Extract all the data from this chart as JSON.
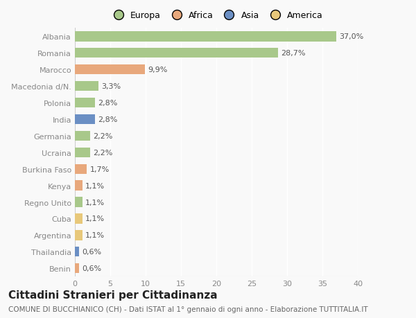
{
  "categories": [
    "Albania",
    "Romania",
    "Marocco",
    "Macedonia d/N.",
    "Polonia",
    "India",
    "Germania",
    "Ucraina",
    "Burkina Faso",
    "Kenya",
    "Regno Unito",
    "Cuba",
    "Argentina",
    "Thailandia",
    "Benin"
  ],
  "values": [
    37.0,
    28.7,
    9.9,
    3.3,
    2.8,
    2.8,
    2.2,
    2.2,
    1.7,
    1.1,
    1.1,
    1.1,
    1.1,
    0.6,
    0.6
  ],
  "labels": [
    "37,0%",
    "28,7%",
    "9,9%",
    "3,3%",
    "2,8%",
    "2,8%",
    "2,2%",
    "2,2%",
    "1,7%",
    "1,1%",
    "1,1%",
    "1,1%",
    "1,1%",
    "0,6%",
    "0,6%"
  ],
  "continents": [
    "Europa",
    "Europa",
    "Africa",
    "Europa",
    "Europa",
    "Asia",
    "Europa",
    "Europa",
    "Africa",
    "Africa",
    "Europa",
    "America",
    "America",
    "Asia",
    "Africa"
  ],
  "continent_colors": {
    "Europa": "#a8c88a",
    "Africa": "#e8a87c",
    "Asia": "#6b8fc4",
    "America": "#e8c87a"
  },
  "legend_items": [
    "Europa",
    "Africa",
    "Asia",
    "America"
  ],
  "legend_colors": [
    "#a8c88a",
    "#e8a87c",
    "#6b8fc4",
    "#e8c87a"
  ],
  "xlim": [
    0,
    40
  ],
  "xticks": [
    0,
    5,
    10,
    15,
    20,
    25,
    30,
    35,
    40
  ],
  "title": "Cittadini Stranieri per Cittadinanza",
  "subtitle": "COMUNE DI BUCCHIANICO (CH) - Dati ISTAT al 1° gennaio di ogni anno - Elaborazione TUTTITALIA.IT",
  "background_color": "#f9f9f9",
  "grid_color": "#ffffff",
  "bar_height": 0.6,
  "title_fontsize": 11,
  "subtitle_fontsize": 7.5,
  "label_fontsize": 8,
  "tick_fontsize": 8,
  "legend_fontsize": 9
}
